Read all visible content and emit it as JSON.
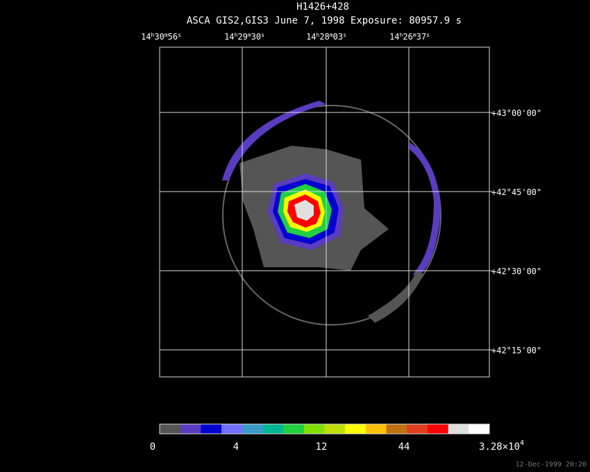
{
  "header": {
    "title": "H1426+428",
    "subtitle": "ASCA GIS2,GIS3 June 7, 1998 Exposure: 80957.9 s"
  },
  "ra_units": [
    "h",
    "m",
    "s"
  ],
  "ra_labels": [
    {
      "hours": "14",
      "minutes": "30",
      "seconds": "56"
    },
    {
      "hours": "14",
      "minutes": "29",
      "seconds": "30"
    },
    {
      "hours": "14",
      "minutes": "28",
      "seconds": "03"
    },
    {
      "hours": "14",
      "minutes": "26",
      "seconds": "37"
    }
  ],
  "dec_labels": [
    "+43°00'00\"",
    "+42°45'00\"",
    "+42°30'00\"",
    "+42°15'00\""
  ],
  "colorbar": {
    "colors": [
      "#555555",
      "#5a3cc0",
      "#0000d0",
      "#7070ff",
      "#3a9ac8",
      "#00b890",
      "#20d040",
      "#80e000",
      "#c0e000",
      "#ffff00",
      "#ffc000",
      "#c07010",
      "#e04020",
      "#ff0000",
      "#e0e0e0",
      "#ffffff"
    ],
    "labels": [
      "0",
      "4",
      "12",
      "44"
    ],
    "max_label": {
      "mantissa": "3.28×10",
      "exponent": "4"
    }
  },
  "timestamp": "12-Dec-1999 20:20"
}
